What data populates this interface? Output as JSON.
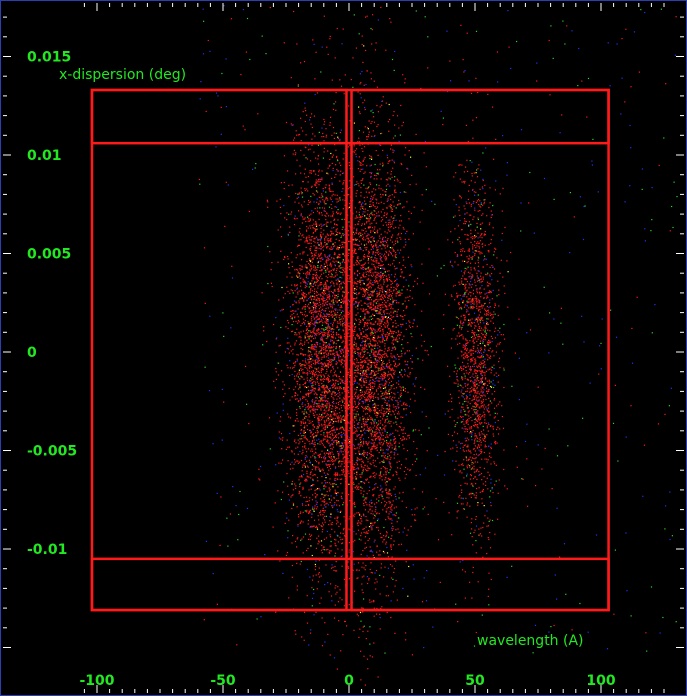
{
  "chart_data": {
    "type": "scatter",
    "title": "",
    "xlabel": "wavelength (A)",
    "ylabel": "x-dispersion (deg)",
    "xlim": [
      -109,
      128
    ],
    "ylim": [
      -0.0155,
      0.0178
    ],
    "xticks": [
      -100,
      -50,
      0,
      50,
      100
    ],
    "xtick_labels": [
      "-100",
      "-50",
      "0",
      "50",
      "100"
    ],
    "yticks": [
      0.015,
      0.01,
      0.005,
      0,
      -0.005,
      -0.01
    ],
    "ytick_labels": [
      "0.015",
      "0.01",
      "0.005",
      "0",
      "-0.005",
      "-0.01"
    ],
    "grid": false,
    "legend": null,
    "colors": {
      "background": "#000000",
      "axis_text": "#22e822",
      "frame_border": "#2b3fb0",
      "region_boxes": "#ff1a1a",
      "points_primary": "#ff1a1a",
      "points_secondary": "#2233ff",
      "points_tertiary": "#22dd22",
      "points_highlight": "#ffff33"
    },
    "series": [
      {
        "color": "#ff1a1a",
        "clusters": [
          {
            "x_center": -11,
            "x_spread": 7,
            "y_center": 0,
            "y_spread": 0.0055,
            "density": 0.55
          },
          {
            "x_center": 10,
            "x_spread": 7,
            "y_center": 0,
            "y_spread": 0.0055,
            "density": 0.55
          },
          {
            "x_center": 50,
            "x_spread": 4.5,
            "y_center": 0,
            "y_spread": 0.0045,
            "density": 0.25
          }
        ]
      }
    ],
    "region_boxes": [
      {
        "x": [
          -102,
          -1
        ],
        "y": [
          -0.0131,
          0.0133
        ]
      },
      {
        "x": [
          1,
          103
        ],
        "y": [
          -0.0131,
          0.0133
        ]
      },
      {
        "x": [
          -102,
          103
        ],
        "y": [
          0.0106,
          0.0133
        ]
      },
      {
        "x": [
          -102,
          103
        ],
        "y": [
          -0.0131,
          -0.0105
        ]
      }
    ]
  }
}
